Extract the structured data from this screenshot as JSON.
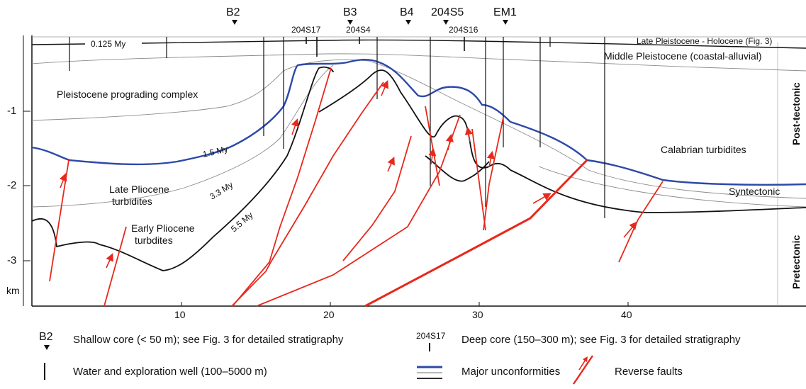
{
  "cores": {
    "shallow": [
      "B2",
      "B3",
      "B4",
      "204S5",
      "EM1"
    ],
    "deep": [
      "204S17",
      "204S4",
      "204S16"
    ]
  },
  "axes": {
    "y_unit": "km",
    "y_ticks": [
      "-1",
      "-2",
      "-3"
    ],
    "x_unit": "km",
    "x_ticks": [
      "10",
      "20",
      "30",
      "40"
    ],
    "x_unit_label": "km"
  },
  "horizons": {
    "h0125": "0.125 My",
    "h15": "1.5 My",
    "h33": "3.3 My",
    "h55": "5.5 My"
  },
  "units": {
    "holocene": "Late Pleistocene - Holocene (Fig. 3)",
    "middle_pleistocene": "Middle Pleistocene (coastal-alluvial)",
    "prograding": "Pleistocene prograding complex",
    "calabrian": "Calabrian turbidites",
    "late_pliocene_1": "Late Pliocene",
    "late_pliocene_2": "turbidites",
    "early_pliocene_1": "Early Pliocene",
    "early_pliocene_2": "turbdites",
    "syntectonic": "Syntectonic",
    "post_tectonic": "Post-tectonic",
    "pretectonic": "Pretectonic"
  },
  "legend": {
    "shallow_symbol": "B2",
    "shallow_text": "Shallow core (< 50 m); see Fig. 3 for detailed stratigraphy",
    "deep_symbol": "204S17",
    "deep_text": "Deep core (150–300 m); see Fig. 3 for detailed stratigraphy",
    "well_text": "Water and exploration well (100–5000 m)",
    "unconformity_text": "Major unconformities",
    "fault_text": "Reverse faults"
  },
  "colors": {
    "unconformity": "#2d49a8",
    "fault": "#e8281c",
    "horizon": "#111111",
    "thin_horizon": "#8c8c8c"
  }
}
